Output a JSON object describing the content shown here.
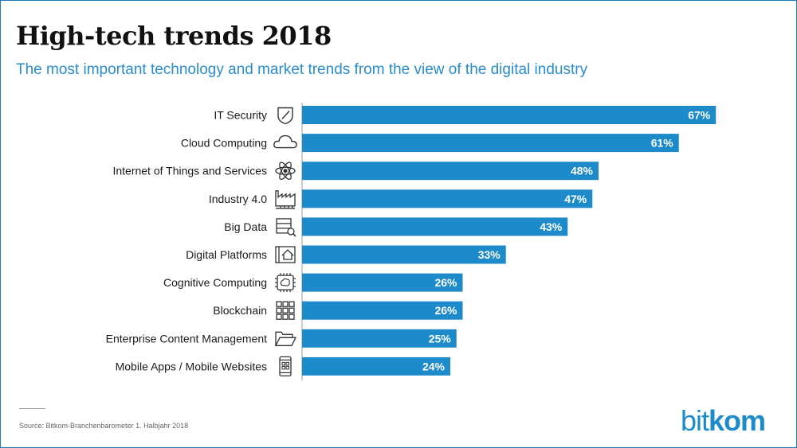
{
  "header": {
    "title": "High-tech trends 2018",
    "subtitle": "The most important technology and market trends from the view of the digital industry"
  },
  "chart_data": {
    "type": "bar",
    "orientation": "horizontal",
    "categories": [
      "IT Security",
      "Cloud Computing",
      "Internet of Things and Services",
      "Industry 4.0",
      "Big Data",
      "Digital Platforms",
      "Cognitive Computing",
      "Blockchain",
      "Enterprise Content Management",
      "Mobile Apps / Mobile Websites"
    ],
    "icons": [
      "shield-icon",
      "cloud-icon",
      "atom-icon",
      "factory-icon",
      "server-search-icon",
      "house-screen-icon",
      "brain-chip-icon",
      "blockchain-grid-icon",
      "folder-icon",
      "smartphone-icon"
    ],
    "values": [
      67,
      61,
      48,
      47,
      43,
      33,
      26,
      26,
      25,
      24
    ],
    "value_labels": [
      "67%",
      "61%",
      "48%",
      "47%",
      "43%",
      "33%",
      "26%",
      "26%",
      "25%",
      "24%"
    ],
    "unit": "%",
    "xlim": [
      0,
      100
    ],
    "grid": false,
    "legend": "none",
    "bar_color": "#1d8ac9",
    "label_color": "#ffffff"
  },
  "footer": {
    "source": "Source: Bitkom-Branchenbarometer 1. Halbjahr 2018",
    "logo_part1": "bit",
    "logo_part2": "kom"
  },
  "colors": {
    "accent": "#1d8ac9",
    "subtitle": "#2b8ccb",
    "title": "#111111"
  }
}
